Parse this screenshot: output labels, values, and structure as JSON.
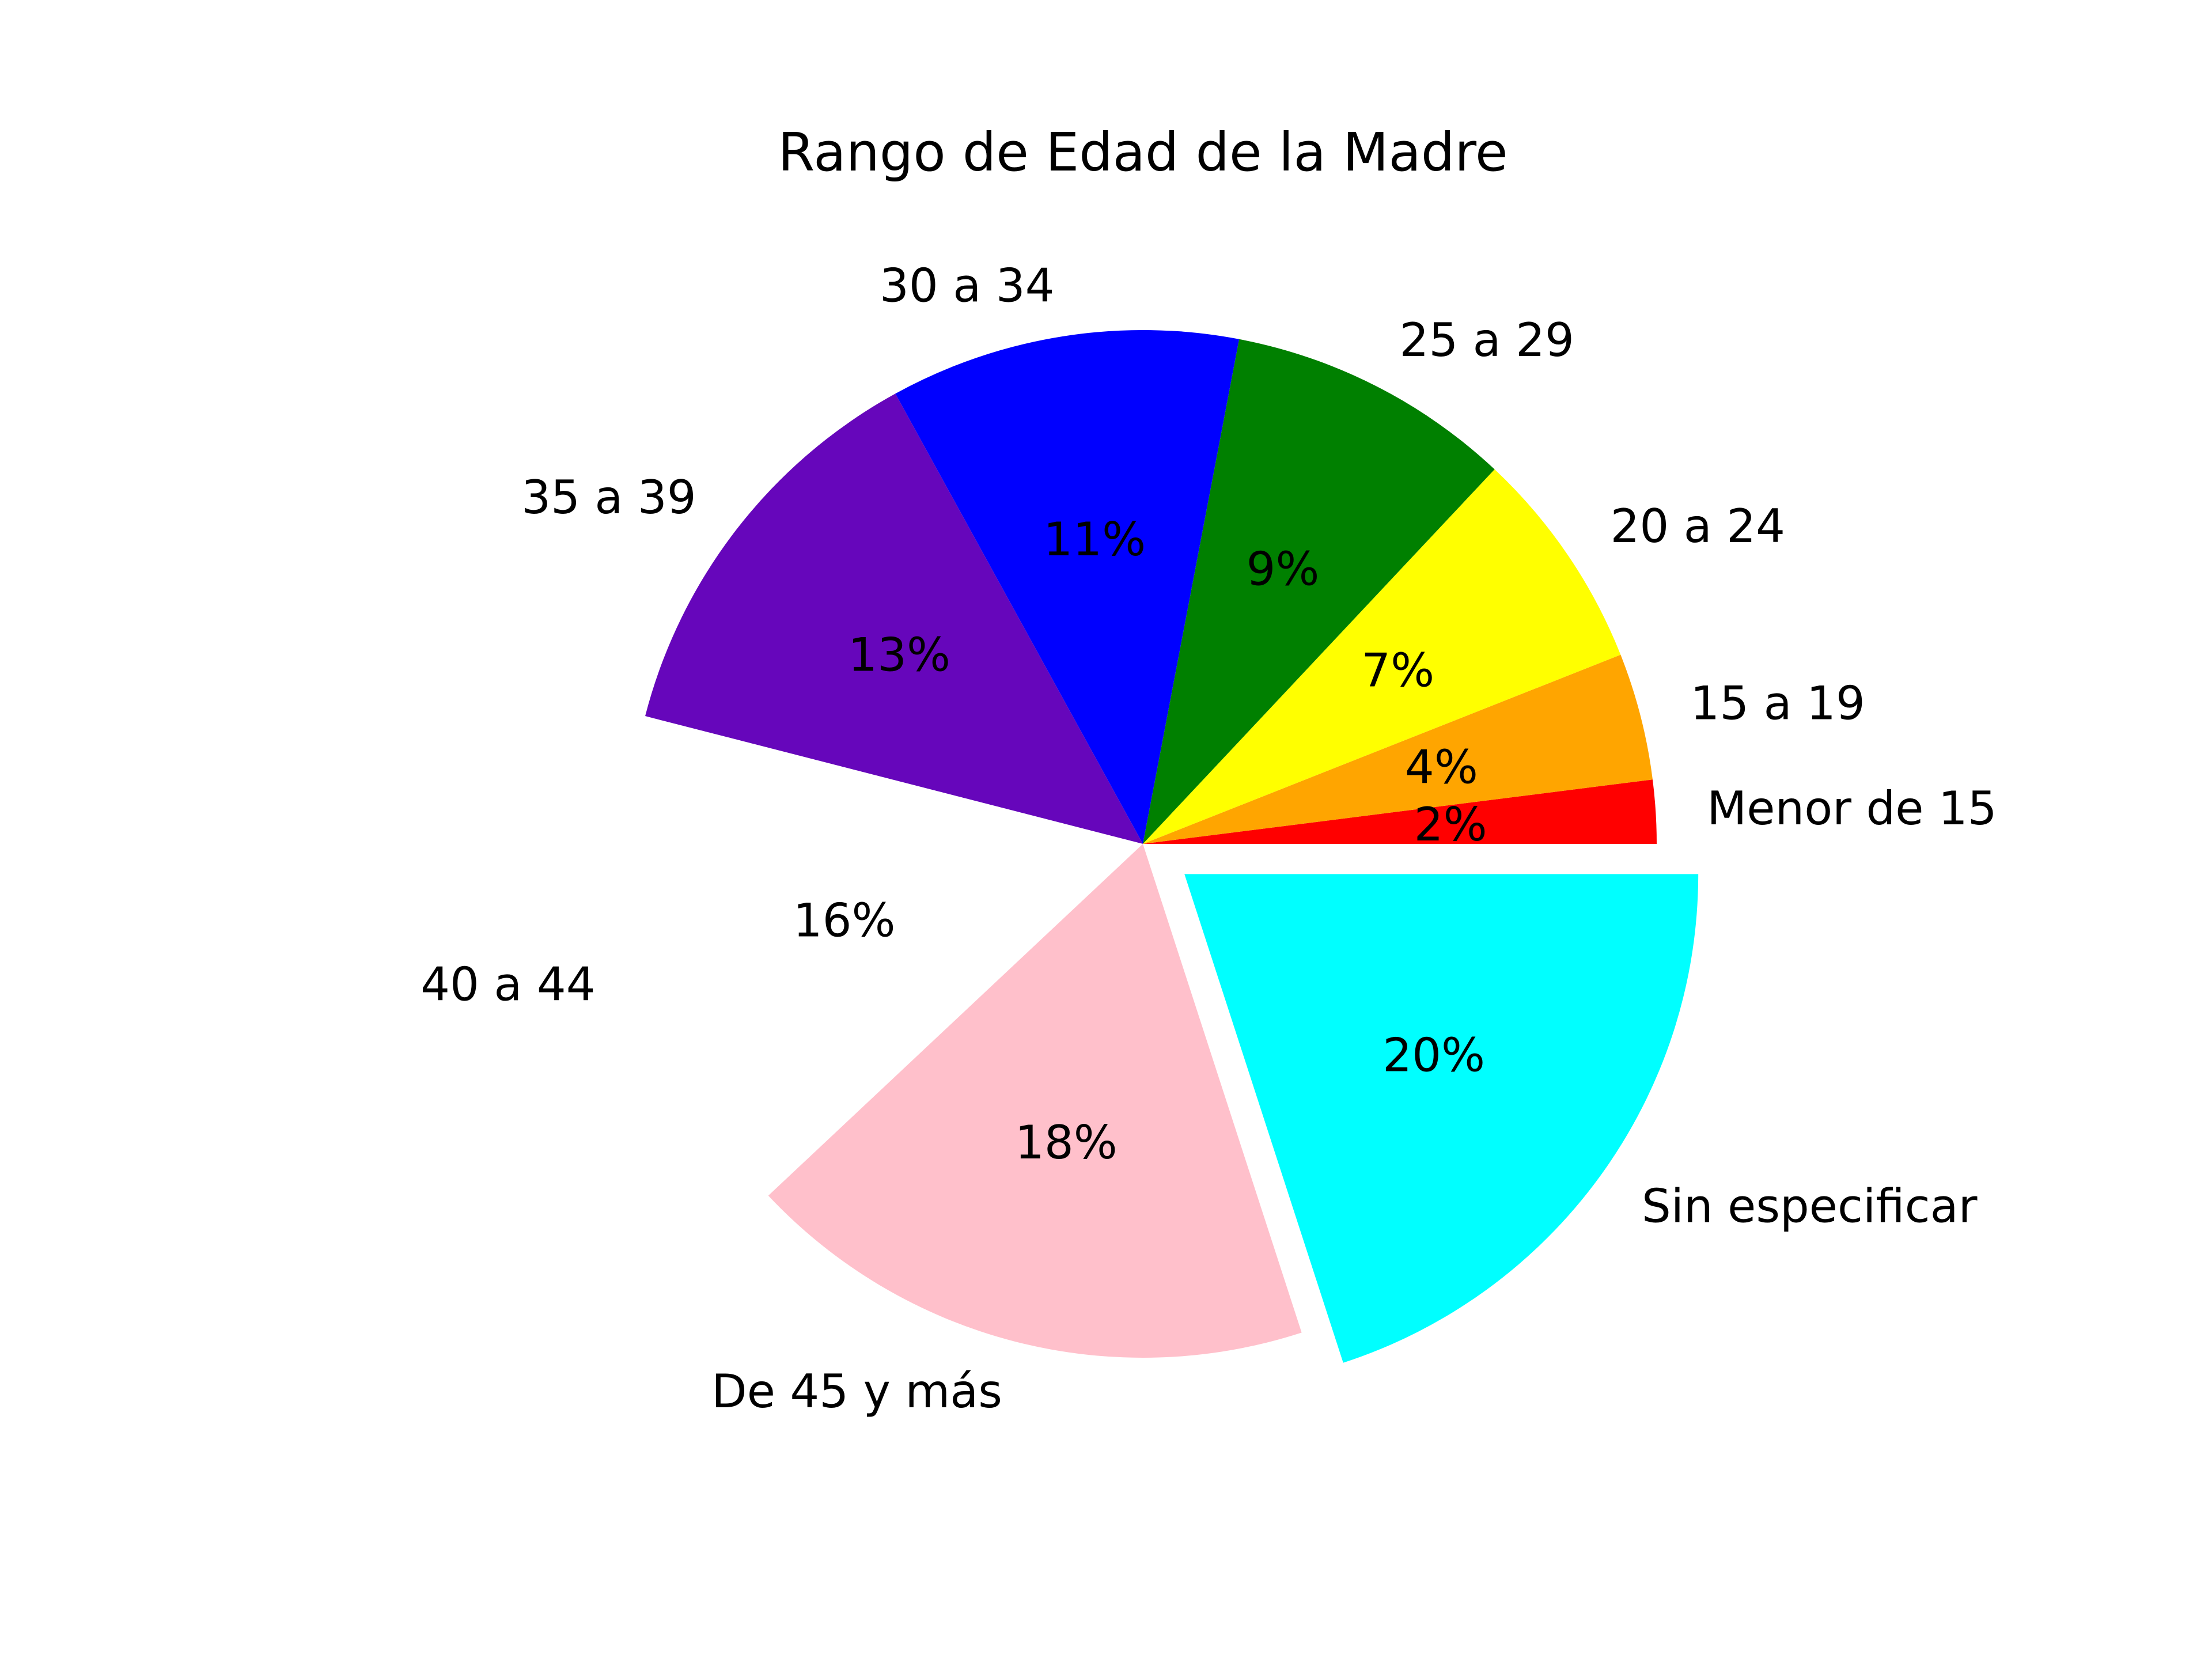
{
  "chart_data": {
    "type": "pie",
    "title": "Rango de Edad de la Madre",
    "start_angle_deg": 0,
    "direction": "counterclockwise",
    "slices": [
      {
        "label": "Menor de 15",
        "value": 2,
        "pct_label": "2%",
        "color": "#ff0000",
        "exploded": false
      },
      {
        "label": "15 a 19",
        "value": 4,
        "pct_label": "4%",
        "color": "#ffa500",
        "exploded": false
      },
      {
        "label": "20 a 24",
        "value": 7,
        "pct_label": "7%",
        "color": "#ffff00",
        "exploded": false
      },
      {
        "label": "25 a 29",
        "value": 9,
        "pct_label": "9%",
        "color": "#008000",
        "exploded": false
      },
      {
        "label": "30 a 34",
        "value": 11,
        "pct_label": "11%",
        "color": "#0000ff",
        "exploded": false
      },
      {
        "label": "35 a 39",
        "value": 13,
        "pct_label": "13%",
        "color": "#6606bb",
        "exploded": false
      },
      {
        "label": "40 a 44",
        "value": 16,
        "pct_label": "16%",
        "color": "#ffffff",
        "exploded": false
      },
      {
        "label": "De 45 y más",
        "value": 18,
        "pct_label": "18%",
        "color": "#ffc0cb",
        "exploded": false
      },
      {
        "label": "Sin especificar",
        "value": 20,
        "pct_label": "20%",
        "color": "#00ffff",
        "exploded": true
      }
    ]
  }
}
